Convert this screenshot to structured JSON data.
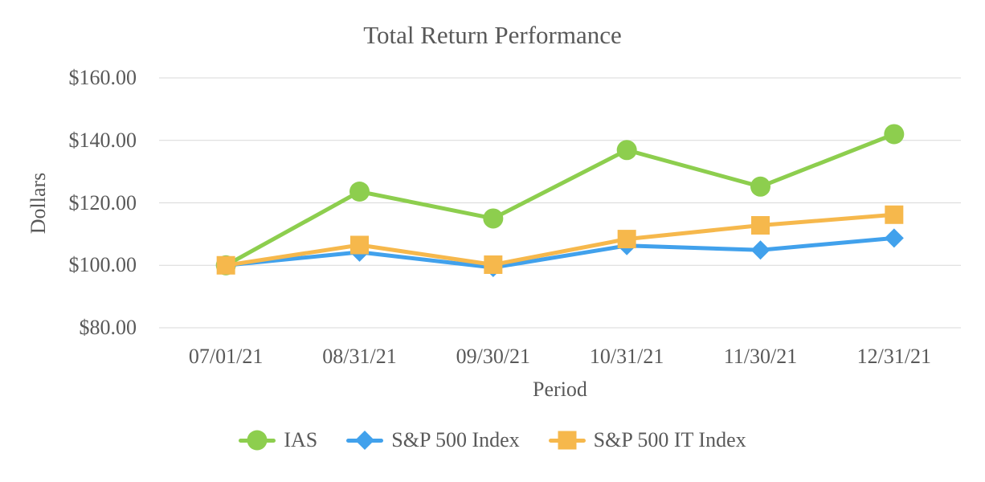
{
  "title": "Total Return Performance",
  "y_axis": {
    "label": "Dollars",
    "tick_labels": [
      "$160.00",
      "$140.00",
      "$120.00",
      "$100.00",
      "$80.00"
    ]
  },
  "x_axis": {
    "label": "Period",
    "tick_labels": [
      "07/01/21",
      "08/31/21",
      "09/30/21",
      "10/31/21",
      "11/30/21",
      "12/31/21"
    ]
  },
  "legend": {
    "items": [
      {
        "label": "IAS",
        "marker": "circle",
        "color": "#8dce4e"
      },
      {
        "label": "S&P 500 Index",
        "marker": "diamond",
        "color": "#41a1ec"
      },
      {
        "label": "S&P 500 IT Index",
        "marker": "square",
        "color": "#f6b84c"
      }
    ]
  },
  "colors": {
    "series_green": "#8dce4e",
    "series_blue": "#41a1ec",
    "series_orange": "#f6b84c",
    "gridline": "#d9d9d9",
    "text": "#595959"
  },
  "chart_data": {
    "type": "line",
    "title": "Total Return Performance",
    "xlabel": "Period",
    "ylabel": "Dollars",
    "x": [
      "07/01/21",
      "08/31/21",
      "09/30/21",
      "10/31/21",
      "11/30/21",
      "12/31/21"
    ],
    "series": [
      {
        "name": "IAS",
        "marker": "circle",
        "color": "#8dce4e",
        "values": [
          100.0,
          123.6,
          115.0,
          136.9,
          125.2,
          142.0
        ]
      },
      {
        "name": "S&P 500 Index",
        "marker": "diamond",
        "color": "#41a1ec",
        "values": [
          100.0,
          104.2,
          99.3,
          106.3,
          104.9,
          108.7
        ]
      },
      {
        "name": "S&P 500 IT Index",
        "marker": "square",
        "color": "#f6b84c",
        "values": [
          100.0,
          106.5,
          100.2,
          108.4,
          112.8,
          116.2
        ]
      }
    ],
    "ylim": [
      80,
      160
    ],
    "y_tick_step": 20,
    "y_tick_format": "$#.00",
    "grid": true,
    "legend_position": "bottom"
  }
}
